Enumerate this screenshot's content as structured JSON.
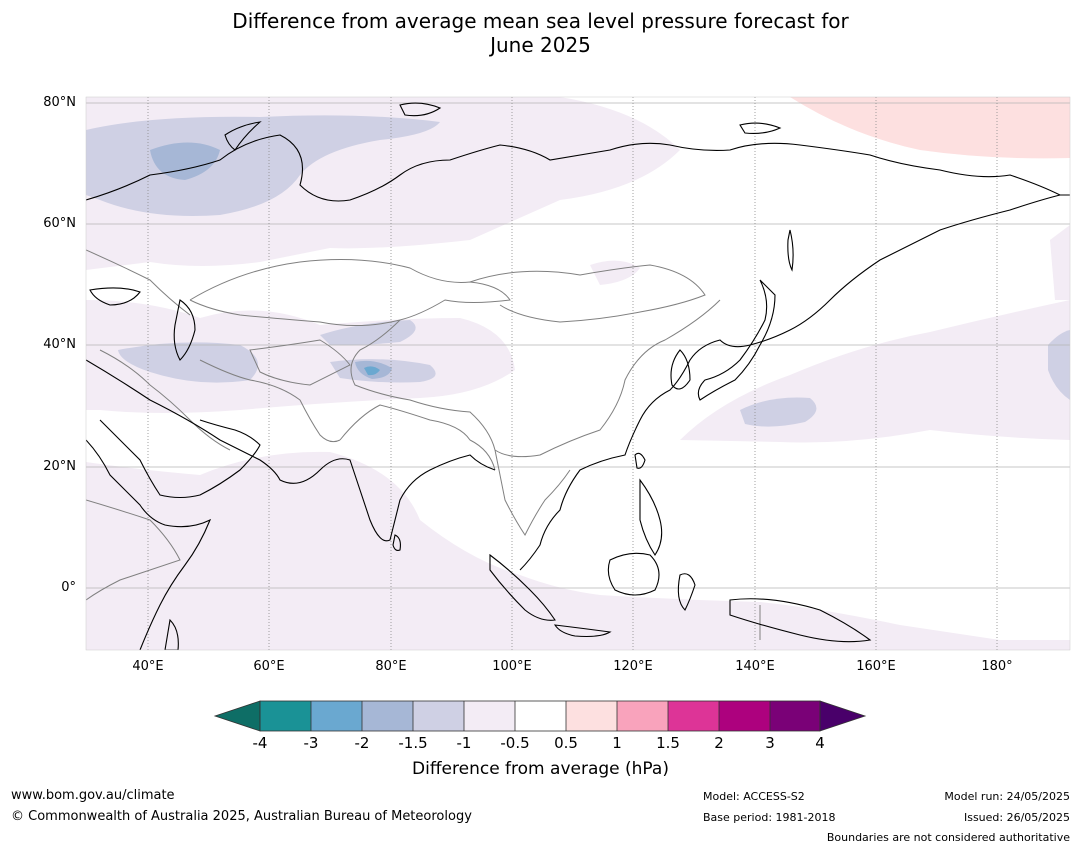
{
  "title_line1": "Difference from average mean sea level pressure forecast for",
  "title_line2": "June 2025",
  "lat_labels": [
    "80°N",
    "60°N",
    "40°N",
    "20°N",
    "0°"
  ],
  "lon_labels": [
    "40°E",
    "60°E",
    "80°E",
    "100°E",
    "120°E",
    "140°E",
    "160°E",
    "180°"
  ],
  "colorbar": {
    "tick_labels": [
      "-4",
      "-3",
      "-2",
      "-1.5",
      "-1",
      "-0.5",
      "0.5",
      "1",
      "1.5",
      "2",
      "3",
      "4"
    ],
    "colors": [
      "#0e6e66",
      "#1a9296",
      "#6aa8d0",
      "#a6b7d6",
      "#cfd0e4",
      "#f3ecf5",
      "#ffffff",
      "#fde0e0",
      "#f9a3bc",
      "#dd3497",
      "#ad017e",
      "#7a0177",
      "#49006a"
    ],
    "label": "Difference from average (hPa)"
  },
  "footer": {
    "url": "www.bom.gov.au/climate",
    "copyright": "© Commonwealth of Australia 2025, Australian Bureau of Meteorology",
    "model": "Model: ACCESS-S2",
    "base_period": "Base period: 1981-2018",
    "model_run": "Model run: 24/05/2025",
    "issued": "Issued: 26/05/2025",
    "disclaimer": "Boundaries are not considered authoritative"
  }
}
